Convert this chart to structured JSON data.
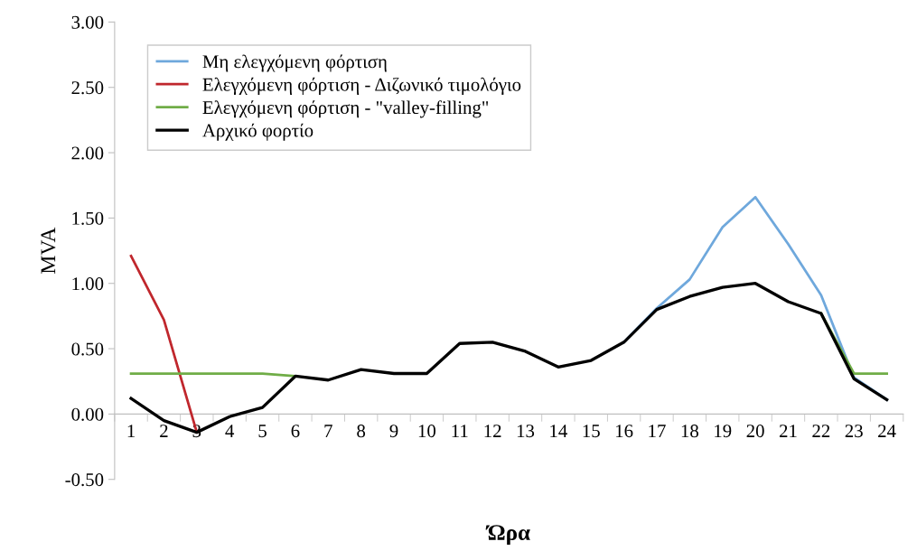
{
  "chart_data": {
    "type": "line",
    "ylabel": "MVA",
    "xlabel": "Ώρα",
    "categories": [
      "1",
      "2",
      "3",
      "4",
      "5",
      "6",
      "7",
      "8",
      "9",
      "10",
      "11",
      "12",
      "13",
      "14",
      "15",
      "16",
      "17",
      "18",
      "19",
      "20",
      "21",
      "22",
      "23",
      "24"
    ],
    "ylim": [
      -0.5,
      3.0
    ],
    "yticks": [
      {
        "value": -0.5,
        "label": "-0.50"
      },
      {
        "value": 0,
        "label": "0.00"
      },
      {
        "value": 0.5,
        "label": "0.50"
      },
      {
        "value": 1.0,
        "label": "1.00"
      },
      {
        "value": 1.5,
        "label": "1.50"
      },
      {
        "value": 2.0,
        "label": "2.00"
      },
      {
        "value": 2.5,
        "label": "2.50"
      },
      {
        "value": 3.0,
        "label": "3.00"
      }
    ],
    "grid": false,
    "legend": "top left",
    "marker": "none",
    "line_style": "solid",
    "series": [
      {
        "name": "Μη ελεγχόμενη φόρτιση",
        "color": "#6fa8dc",
        "values": [
          null,
          null,
          null,
          null,
          null,
          null,
          null,
          null,
          null,
          null,
          null,
          null,
          null,
          null,
          null,
          0.55,
          0.81,
          1.03,
          1.43,
          1.66,
          1.3,
          0.91,
          0.28,
          0.11
        ]
      },
      {
        "name": "Ελεγχόμενη φόρτιση - Διζωνικό τιμολόγιο",
        "color": "#c0272d",
        "values": [
          1.21,
          0.72,
          -0.14,
          null,
          null,
          null,
          null,
          null,
          null,
          null,
          null,
          null,
          null,
          null,
          null,
          null,
          null,
          null,
          null,
          null,
          null,
          null,
          null,
          null
        ]
      },
      {
        "name": "Ελεγχόμενη φόρτιση - \"valley-filling\"",
        "color": "#70ad47",
        "values": [
          0.31,
          0.31,
          0.31,
          0.31,
          0.31,
          0.29,
          null,
          null,
          null,
          null,
          null,
          null,
          null,
          null,
          null,
          null,
          null,
          null,
          null,
          null,
          null,
          0.77,
          0.31,
          0.31
        ]
      },
      {
        "name": "Αρχικό φορτίο",
        "color": "#000000",
        "values": [
          0.12,
          -0.05,
          -0.14,
          -0.02,
          0.05,
          0.29,
          0.26,
          0.34,
          0.31,
          0.31,
          0.54,
          0.55,
          0.48,
          0.36,
          0.41,
          0.55,
          0.8,
          0.9,
          0.97,
          1.0,
          0.86,
          0.77,
          0.27,
          0.11
        ]
      }
    ]
  }
}
